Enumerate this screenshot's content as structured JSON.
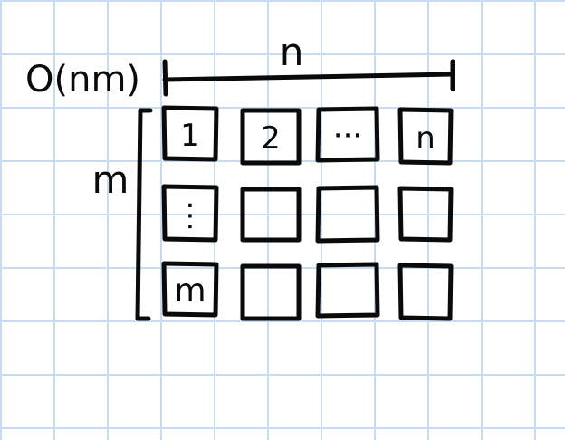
{
  "complexity_label": "O(nm)",
  "dimension_labels": {
    "columns": "n",
    "rows": "m"
  },
  "grid": {
    "rows": 3,
    "columns": 4,
    "cells": [
      [
        "1",
        "2",
        "···",
        "n"
      ],
      [
        "⋮",
        "",
        "",
        ""
      ],
      [
        "m",
        "",
        "",
        ""
      ]
    ]
  },
  "colors": {
    "ink": "#0a0a0a",
    "paper": "#ffffff",
    "grid_lines": "#c6dbf4"
  }
}
